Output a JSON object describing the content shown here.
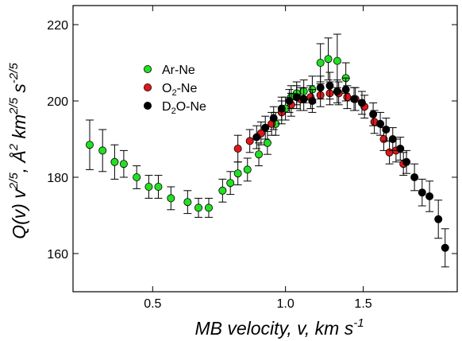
{
  "chart_data": {
    "type": "scatter",
    "xlabel": "MB velocity, v,  km s",
    "xlabel_superscript": "-1",
    "ylabel": {
      "q": "Q(v) v",
      "exp1": "2/5",
      "unit1": ", Å",
      "exp2": "2",
      "unit2": " km",
      "exp3": "2/5",
      "unit3": " s",
      "exp4": "-2/5"
    },
    "x_scale": "log",
    "xlim": [
      0.33,
      2.45
    ],
    "ylim": [
      150,
      225
    ],
    "x_ticks": [
      {
        "value": 0.5,
        "label": "0.5"
      },
      {
        "value": 1.0,
        "label": "1.0"
      },
      {
        "value": 1.5,
        "label": "1.5"
      }
    ],
    "y_ticks": [
      {
        "value": 160,
        "label": "160"
      },
      {
        "value": 180,
        "label": "180"
      },
      {
        "value": 200,
        "label": "200"
      },
      {
        "value": 220,
        "label": "220"
      }
    ],
    "grid": false,
    "legend_position": "upper-left",
    "series": [
      {
        "name": "Ar-Ne",
        "color": "#22e022",
        "points": [
          {
            "x": 0.36,
            "y": 188.5,
            "err": 6.5
          },
          {
            "x": 0.385,
            "y": 187.0,
            "err": 5.5
          },
          {
            "x": 0.41,
            "y": 184.0,
            "err": 4.5
          },
          {
            "x": 0.43,
            "y": 183.5,
            "err": 3.5
          },
          {
            "x": 0.46,
            "y": 180.0,
            "err": 3.0
          },
          {
            "x": 0.49,
            "y": 177.5,
            "err": 3.0
          },
          {
            "x": 0.515,
            "y": 177.5,
            "err": 3.0
          },
          {
            "x": 0.55,
            "y": 174.5,
            "err": 3.0
          },
          {
            "x": 0.6,
            "y": 173.5,
            "err": 3.0
          },
          {
            "x": 0.635,
            "y": 172.0,
            "err": 2.5
          },
          {
            "x": 0.67,
            "y": 172.0,
            "err": 2.5
          },
          {
            "x": 0.72,
            "y": 176.5,
            "err": 3.0
          },
          {
            "x": 0.75,
            "y": 178.5,
            "err": 3.0
          },
          {
            "x": 0.78,
            "y": 181.0,
            "err": 3.0
          },
          {
            "x": 0.82,
            "y": 182.0,
            "err": 3.0
          },
          {
            "x": 0.87,
            "y": 186.0,
            "err": 3.0
          },
          {
            "x": 0.91,
            "y": 189.0,
            "err": 3.0
          },
          {
            "x": 0.95,
            "y": 194.0,
            "err": 3.0
          },
          {
            "x": 1.0,
            "y": 198.0,
            "err": 3.0
          },
          {
            "x": 1.03,
            "y": 201.0,
            "err": 3.0
          },
          {
            "x": 1.06,
            "y": 202.0,
            "err": 3.0
          },
          {
            "x": 1.1,
            "y": 202.5,
            "err": 3.0
          },
          {
            "x": 1.15,
            "y": 203.0,
            "err": 3.5
          },
          {
            "x": 1.2,
            "y": 210.0,
            "err": 5.0
          },
          {
            "x": 1.25,
            "y": 211.0,
            "err": 5.5
          },
          {
            "x": 1.31,
            "y": 210.5,
            "err": 7.0
          },
          {
            "x": 1.37,
            "y": 206.0,
            "err": 4.0
          }
        ]
      },
      {
        "name": "O_2-Ne",
        "color": "#e01818",
        "points": [
          {
            "x": 0.78,
            "y": 187.5,
            "err": 3.5
          },
          {
            "x": 0.83,
            "y": 189.5,
            "err": 3.0
          },
          {
            "x": 0.88,
            "y": 191.5,
            "err": 3.0
          },
          {
            "x": 0.93,
            "y": 194.0,
            "err": 3.0
          },
          {
            "x": 0.98,
            "y": 197.0,
            "err": 3.0
          },
          {
            "x": 1.03,
            "y": 199.0,
            "err": 3.0
          },
          {
            "x": 1.08,
            "y": 200.5,
            "err": 3.0
          },
          {
            "x": 1.14,
            "y": 201.0,
            "err": 3.0
          },
          {
            "x": 1.2,
            "y": 201.5,
            "err": 3.0
          },
          {
            "x": 1.26,
            "y": 202.0,
            "err": 3.0
          },
          {
            "x": 1.32,
            "y": 202.0,
            "err": 3.0
          },
          {
            "x": 1.38,
            "y": 201.0,
            "err": 3.0
          },
          {
            "x": 1.44,
            "y": 200.5,
            "err": 3.0
          },
          {
            "x": 1.51,
            "y": 198.5,
            "err": 3.0
          },
          {
            "x": 1.59,
            "y": 194.5,
            "err": 3.0
          },
          {
            "x": 1.67,
            "y": 190.0,
            "err": 3.0
          },
          {
            "x": 1.72,
            "y": 186.5,
            "err": 3.0
          },
          {
            "x": 1.78,
            "y": 187.0,
            "err": 3.0
          },
          {
            "x": 1.85,
            "y": 183.5,
            "err": 3.0
          }
        ]
      },
      {
        "name": "D_2O-Ne",
        "color": "#000000",
        "points": [
          {
            "x": 0.86,
            "y": 190.5,
            "err": 3.0
          },
          {
            "x": 0.9,
            "y": 193.0,
            "err": 3.0
          },
          {
            "x": 0.94,
            "y": 195.5,
            "err": 3.0
          },
          {
            "x": 0.98,
            "y": 198.0,
            "err": 3.0
          },
          {
            "x": 1.02,
            "y": 200.0,
            "err": 3.0
          },
          {
            "x": 1.06,
            "y": 201.0,
            "err": 3.0
          },
          {
            "x": 1.1,
            "y": 200.5,
            "err": 3.0
          },
          {
            "x": 1.15,
            "y": 200.0,
            "err": 3.0
          },
          {
            "x": 1.2,
            "y": 203.5,
            "err": 3.0
          },
          {
            "x": 1.26,
            "y": 204.0,
            "err": 3.5
          },
          {
            "x": 1.31,
            "y": 202.5,
            "err": 3.0
          },
          {
            "x": 1.37,
            "y": 203.0,
            "err": 3.0
          },
          {
            "x": 1.43,
            "y": 200.5,
            "err": 3.0
          },
          {
            "x": 1.49,
            "y": 199.5,
            "err": 3.0
          },
          {
            "x": 1.58,
            "y": 196.5,
            "err": 3.0
          },
          {
            "x": 1.64,
            "y": 194.0,
            "err": 3.0
          },
          {
            "x": 1.69,
            "y": 192.5,
            "err": 3.0
          },
          {
            "x": 1.75,
            "y": 190.0,
            "err": 3.0
          },
          {
            "x": 1.82,
            "y": 187.5,
            "err": 3.0
          },
          {
            "x": 1.88,
            "y": 184.0,
            "err": 3.0
          },
          {
            "x": 1.96,
            "y": 180.0,
            "err": 3.5
          },
          {
            "x": 2.04,
            "y": 176.0,
            "err": 3.5
          },
          {
            "x": 2.12,
            "y": 175.0,
            "err": 4.0
          },
          {
            "x": 2.22,
            "y": 169.0,
            "err": 5.0
          },
          {
            "x": 2.3,
            "y": 161.5,
            "err": 5.0
          }
        ]
      }
    ]
  }
}
